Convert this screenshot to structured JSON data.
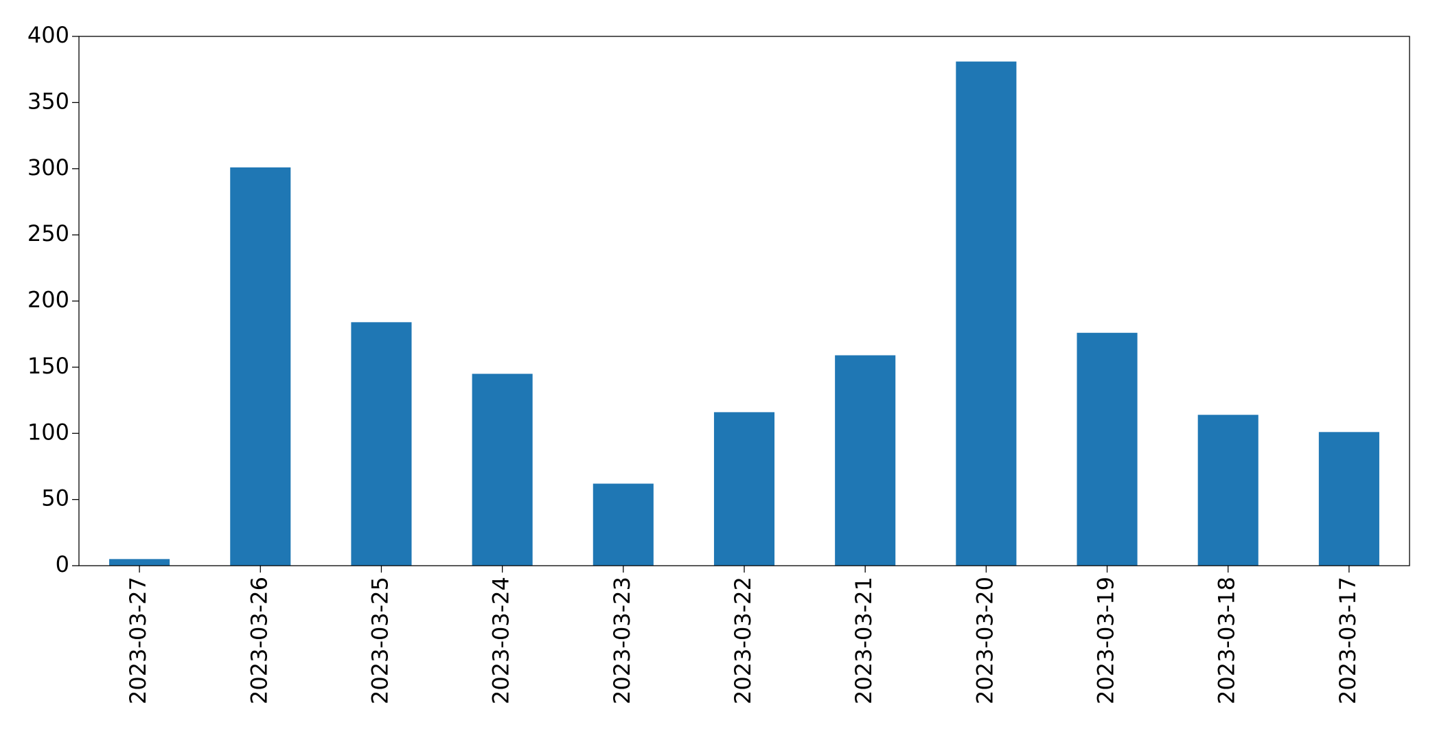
{
  "chart_data": {
    "type": "bar",
    "categories": [
      "2023-03-27",
      "2023-03-26",
      "2023-03-25",
      "2023-03-24",
      "2023-03-23",
      "2023-03-22",
      "2023-03-21",
      "2023-03-20",
      "2023-03-19",
      "2023-03-18",
      "2023-03-17"
    ],
    "values": [
      5,
      301,
      184,
      145,
      62,
      116,
      159,
      381,
      176,
      114,
      101
    ],
    "color": "#1f77b4",
    "ylim": [
      0,
      400
    ],
    "yticks": [
      0,
      50,
      100,
      150,
      200,
      250,
      300,
      350,
      400
    ],
    "grid": false
  }
}
